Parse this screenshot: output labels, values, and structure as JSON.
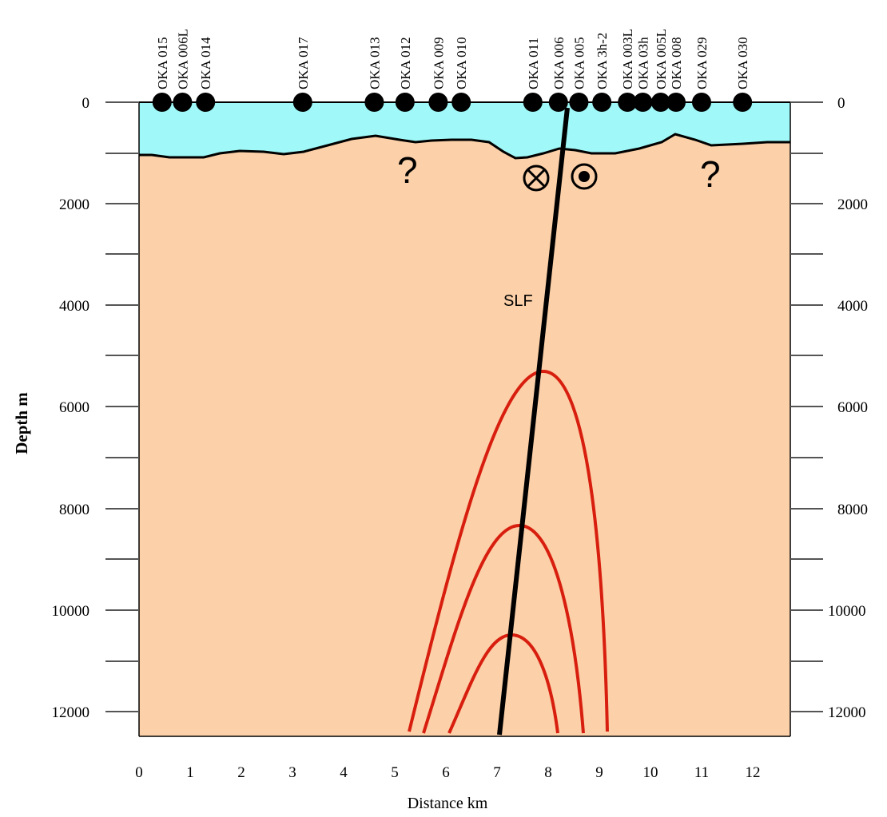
{
  "x_axis": {
    "label": "Distance km",
    "ticks": [
      "0",
      "1",
      "2",
      "3",
      "4",
      "5",
      "6",
      "7",
      "8",
      "9",
      "10",
      "11",
      "12"
    ]
  },
  "y_axis": {
    "label": "Depth m",
    "left_ticks": [
      "0",
      "2000",
      "4000",
      "6000",
      "8000",
      "10000",
      "12000"
    ],
    "right_ticks": [
      "0",
      "2000",
      "4000",
      "6000",
      "8000",
      "10000",
      "12000"
    ]
  },
  "stations": [
    {
      "label": "OKA 015",
      "km": 0.45
    },
    {
      "label": "OKA 006L",
      "km": 0.85
    },
    {
      "label": "OKA 014",
      "km": 1.3
    },
    {
      "label": "OKA 017",
      "km": 3.2
    },
    {
      "label": "OKA 013",
      "km": 4.6
    },
    {
      "label": "OKA 012",
      "km": 5.2
    },
    {
      "label": "OKA 009",
      "km": 5.85
    },
    {
      "label": "OKA 010",
      "km": 6.3
    },
    {
      "label": "OKA 011",
      "km": 7.7
    },
    {
      "label": "OKA 006",
      "km": 8.2
    },
    {
      "label": "OKA 005",
      "km": 8.6
    },
    {
      "label": "OKA 3h-2",
      "km": 9.05
    },
    {
      "label": "OKA 003L",
      "km": 9.55
    },
    {
      "label": "OKA 03h",
      "km": 9.85
    },
    {
      "label": "OKA 005L",
      "km": 10.2
    },
    {
      "label": "OKA 008",
      "km": 10.5
    },
    {
      "label": "OKA 029",
      "km": 11.0
    },
    {
      "label": "OKA 030",
      "km": 11.8
    }
  ],
  "fault": {
    "label": "SLF"
  },
  "unknown_marks": [
    "?",
    "?"
  ],
  "colors": {
    "upper_layer": "#a0f8f8",
    "basement": "#fcd0a8",
    "fault": "#000000",
    "conductor_contours": "#d81e0e"
  }
}
